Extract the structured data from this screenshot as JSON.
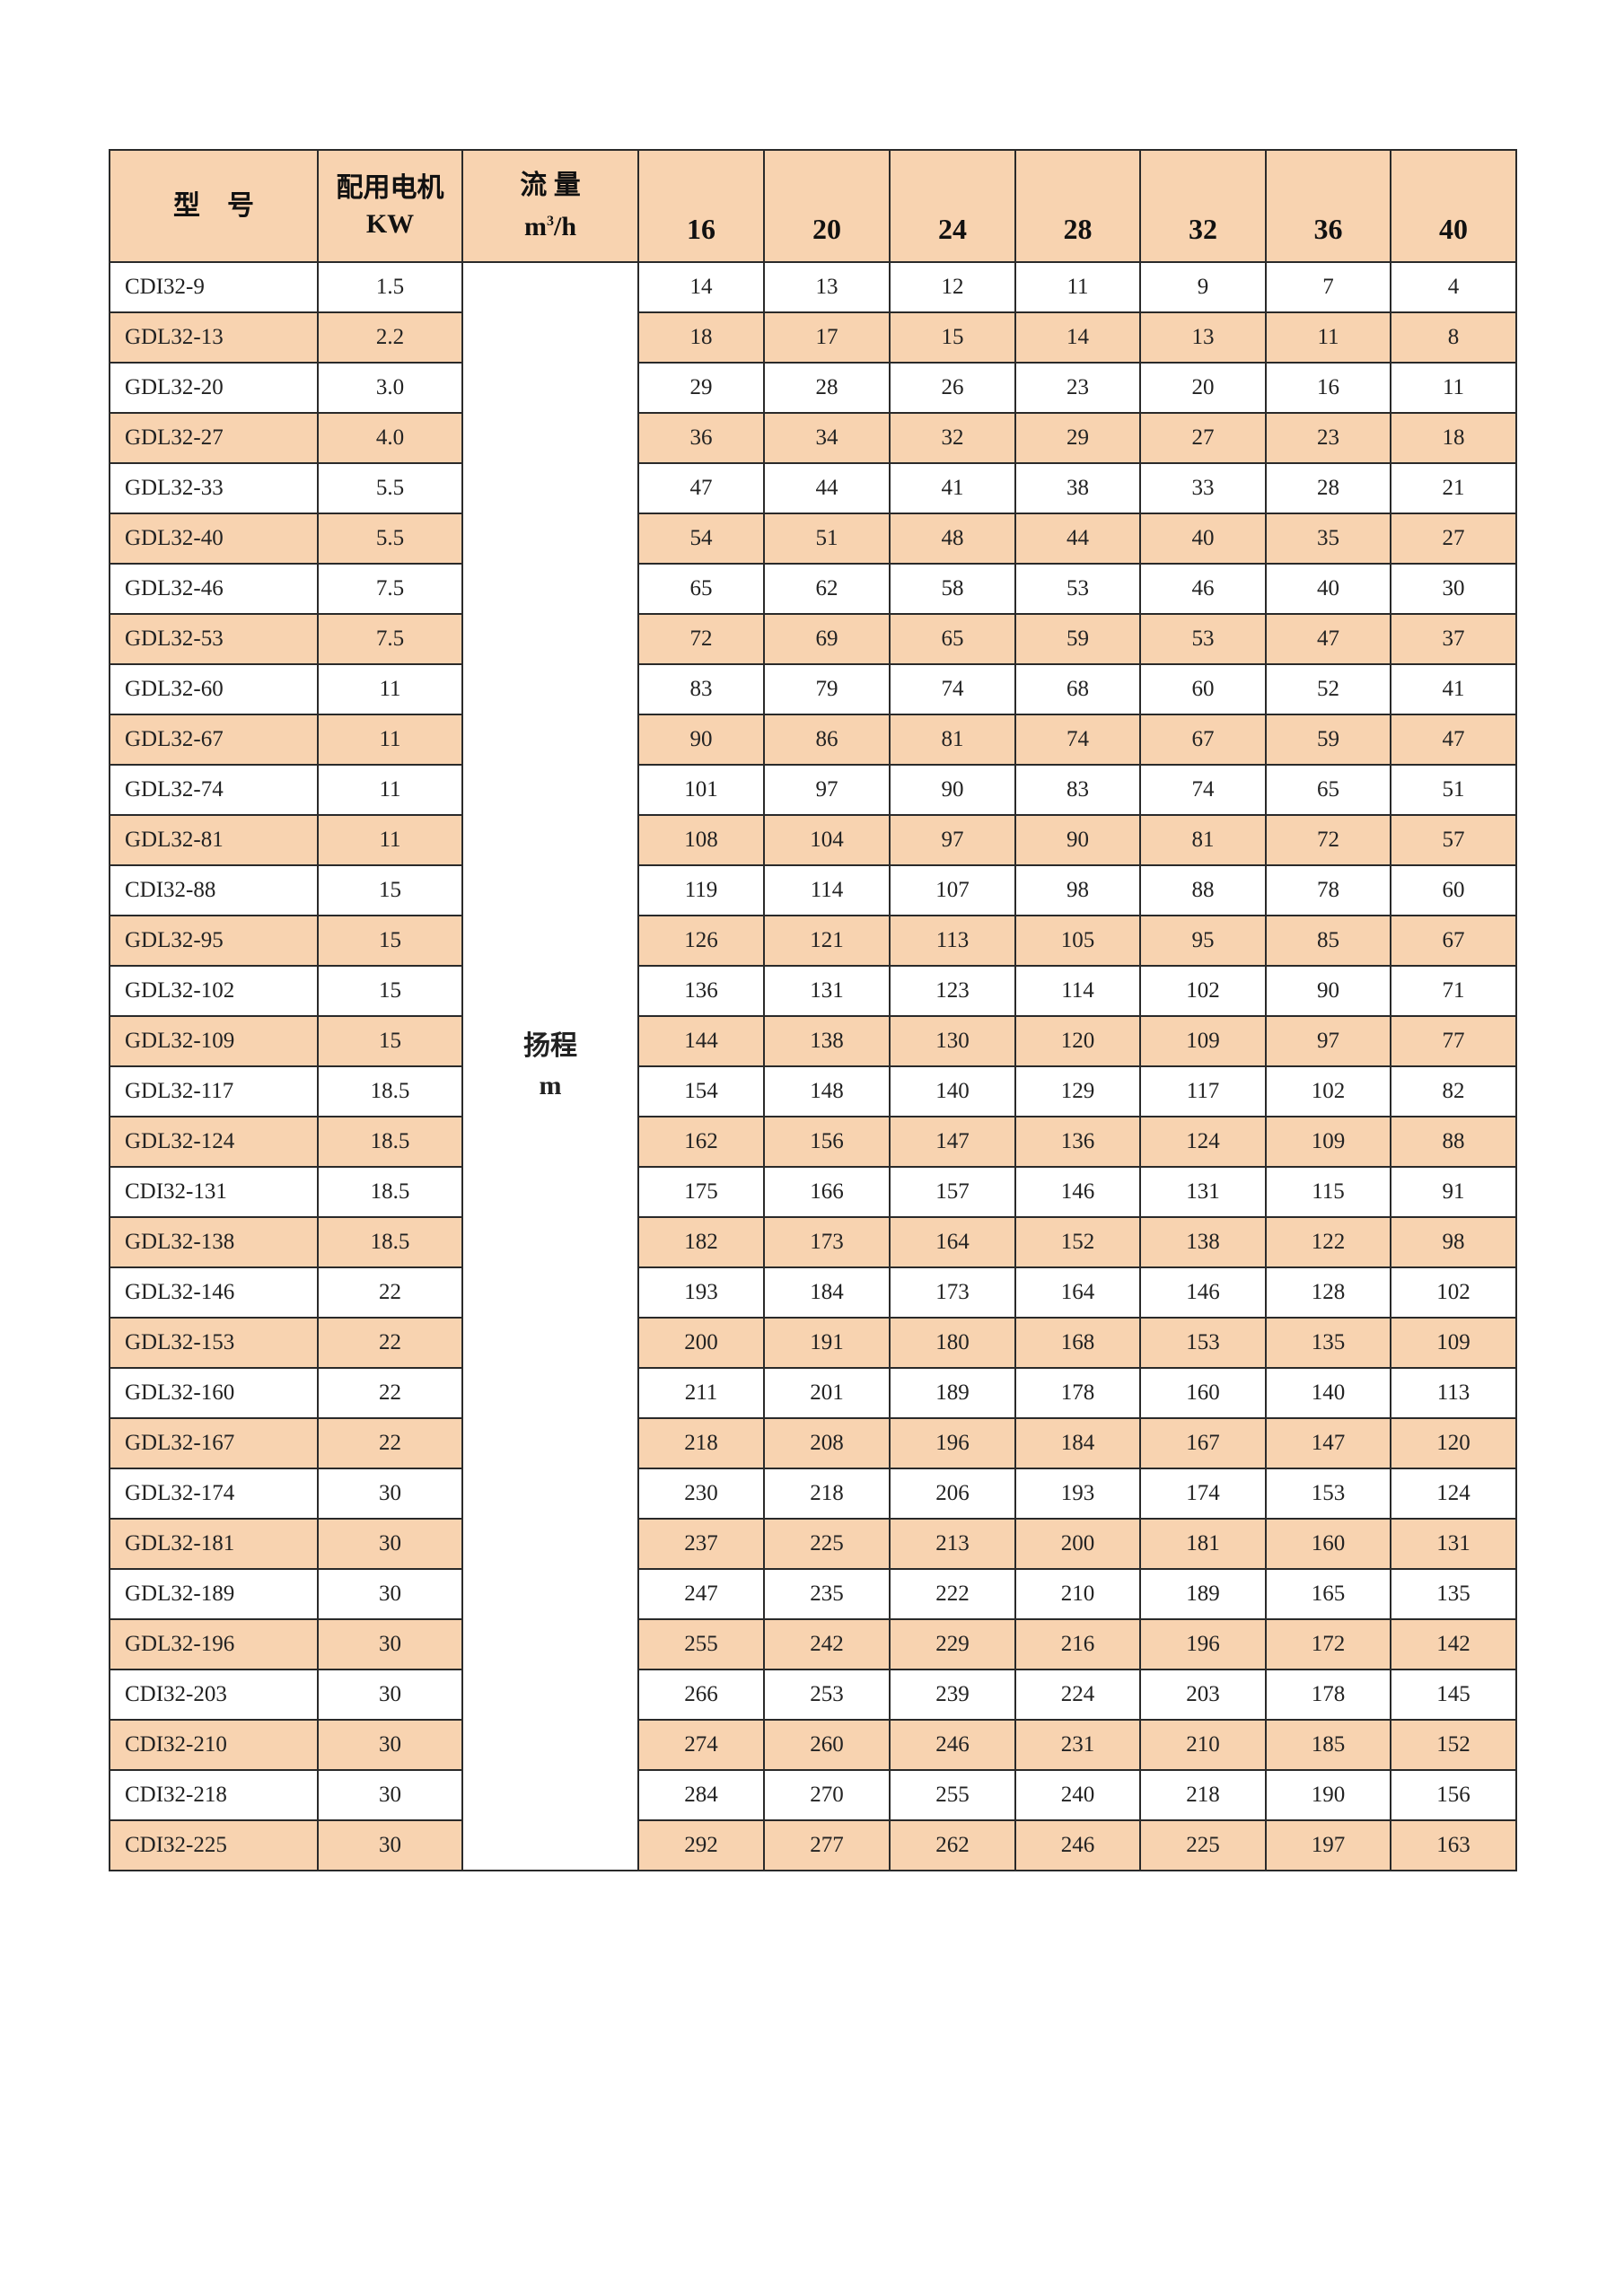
{
  "header": {
    "model": "型　号",
    "motor_line1": "配用电机",
    "motor_line2": "KW",
    "flow_line1": "流 量",
    "flow_unit_base": "m",
    "flow_unit_sup": "3",
    "flow_unit_rest": "/h",
    "flows": [
      "16",
      "20",
      "24",
      "28",
      "32",
      "36",
      "40"
    ]
  },
  "head_label": {
    "line1": "扬程",
    "line2": "m"
  },
  "colors": {
    "shade": "#f8d3b0",
    "border": "#2a2a2a"
  },
  "rows": [
    {
      "model": "CDI32-9",
      "kw": "1.5",
      "heads": [
        "14",
        "13",
        "12",
        "11",
        "9",
        "7",
        "4"
      ]
    },
    {
      "model": "GDL32-13",
      "kw": "2.2",
      "heads": [
        "18",
        "17",
        "15",
        "14",
        "13",
        "11",
        "8"
      ]
    },
    {
      "model": "GDL32-20",
      "kw": "3.0",
      "heads": [
        "29",
        "28",
        "26",
        "23",
        "20",
        "16",
        "11"
      ]
    },
    {
      "model": "GDL32-27",
      "kw": "4.0",
      "heads": [
        "36",
        "34",
        "32",
        "29",
        "27",
        "23",
        "18"
      ]
    },
    {
      "model": "GDL32-33",
      "kw": "5.5",
      "heads": [
        "47",
        "44",
        "41",
        "38",
        "33",
        "28",
        "21"
      ]
    },
    {
      "model": "GDL32-40",
      "kw": "5.5",
      "heads": [
        "54",
        "51",
        "48",
        "44",
        "40",
        "35",
        "27"
      ]
    },
    {
      "model": "GDL32-46",
      "kw": "7.5",
      "heads": [
        "65",
        "62",
        "58",
        "53",
        "46",
        "40",
        "30"
      ]
    },
    {
      "model": "GDL32-53",
      "kw": "7.5",
      "heads": [
        "72",
        "69",
        "65",
        "59",
        "53",
        "47",
        "37"
      ]
    },
    {
      "model": "GDL32-60",
      "kw": "11",
      "heads": [
        "83",
        "79",
        "74",
        "68",
        "60",
        "52",
        "41"
      ]
    },
    {
      "model": "GDL32-67",
      "kw": "11",
      "heads": [
        "90",
        "86",
        "81",
        "74",
        "67",
        "59",
        "47"
      ]
    },
    {
      "model": "GDL32-74",
      "kw": "11",
      "heads": [
        "101",
        "97",
        "90",
        "83",
        "74",
        "65",
        "51"
      ]
    },
    {
      "model": "GDL32-81",
      "kw": "11",
      "heads": [
        "108",
        "104",
        "97",
        "90",
        "81",
        "72",
        "57"
      ]
    },
    {
      "model": "CDI32-88",
      "kw": "15",
      "heads": [
        "119",
        "114",
        "107",
        "98",
        "88",
        "78",
        "60"
      ]
    },
    {
      "model": "GDL32-95",
      "kw": "15",
      "heads": [
        "126",
        "121",
        "113",
        "105",
        "95",
        "85",
        "67"
      ]
    },
    {
      "model": "GDL32-102",
      "kw": "15",
      "heads": [
        "136",
        "131",
        "123",
        "114",
        "102",
        "90",
        "71"
      ]
    },
    {
      "model": "GDL32-109",
      "kw": "15",
      "heads": [
        "144",
        "138",
        "130",
        "120",
        "109",
        "97",
        "77"
      ]
    },
    {
      "model": "GDL32-117",
      "kw": "18.5",
      "heads": [
        "154",
        "148",
        "140",
        "129",
        "117",
        "102",
        "82"
      ]
    },
    {
      "model": "GDL32-124",
      "kw": "18.5",
      "heads": [
        "162",
        "156",
        "147",
        "136",
        "124",
        "109",
        "88"
      ]
    },
    {
      "model": "CDI32-131",
      "kw": "18.5",
      "heads": [
        "175",
        "166",
        "157",
        "146",
        "131",
        "115",
        "91"
      ]
    },
    {
      "model": "GDL32-138",
      "kw": "18.5",
      "heads": [
        "182",
        "173",
        "164",
        "152",
        "138",
        "122",
        "98"
      ]
    },
    {
      "model": "GDL32-146",
      "kw": "22",
      "heads": [
        "193",
        "184",
        "173",
        "164",
        "146",
        "128",
        "102"
      ]
    },
    {
      "model": "GDL32-153",
      "kw": "22",
      "heads": [
        "200",
        "191",
        "180",
        "168",
        "153",
        "135",
        "109"
      ]
    },
    {
      "model": "GDL32-160",
      "kw": "22",
      "heads": [
        "211",
        "201",
        "189",
        "178",
        "160",
        "140",
        "113"
      ]
    },
    {
      "model": "GDL32-167",
      "kw": "22",
      "heads": [
        "218",
        "208",
        "196",
        "184",
        "167",
        "147",
        "120"
      ]
    },
    {
      "model": "GDL32-174",
      "kw": "30",
      "heads": [
        "230",
        "218",
        "206",
        "193",
        "174",
        "153",
        "124"
      ]
    },
    {
      "model": "GDL32-181",
      "kw": "30",
      "heads": [
        "237",
        "225",
        "213",
        "200",
        "181",
        "160",
        "131"
      ]
    },
    {
      "model": "GDL32-189",
      "kw": "30",
      "heads": [
        "247",
        "235",
        "222",
        "210",
        "189",
        "165",
        "135"
      ]
    },
    {
      "model": "GDL32-196",
      "kw": "30",
      "heads": [
        "255",
        "242",
        "229",
        "216",
        "196",
        "172",
        "142"
      ]
    },
    {
      "model": "CDI32-203",
      "kw": "30",
      "heads": [
        "266",
        "253",
        "239",
        "224",
        "203",
        "178",
        "145"
      ]
    },
    {
      "model": "CDI32-210",
      "kw": "30",
      "heads": [
        "274",
        "260",
        "246",
        "231",
        "210",
        "185",
        "152"
      ]
    },
    {
      "model": "CDI32-218",
      "kw": "30",
      "heads": [
        "284",
        "270",
        "255",
        "240",
        "218",
        "190",
        "156"
      ]
    },
    {
      "model": "CDI32-225",
      "kw": "30",
      "heads": [
        "292",
        "277",
        "262",
        "246",
        "225",
        "197",
        "163"
      ]
    }
  ]
}
